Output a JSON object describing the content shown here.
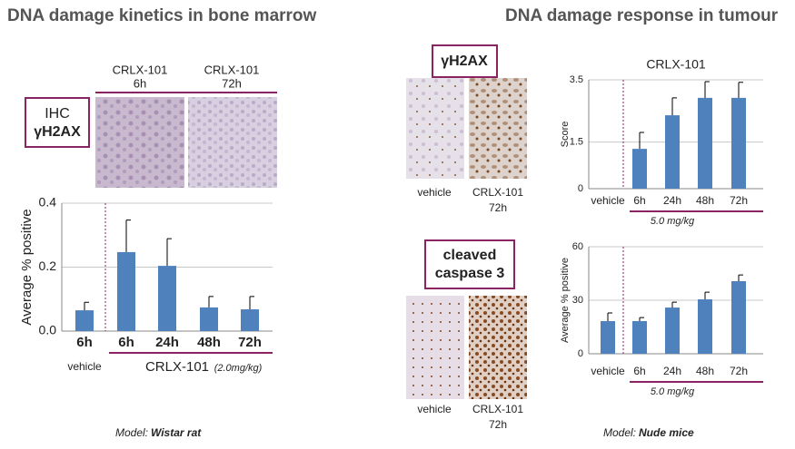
{
  "headings": [
    "DNA damage kinetics in bone marrow",
    "DNA damage response in tumour"
  ],
  "bone_marrow": {
    "captions": [
      [
        "CRLX-101",
        "6h"
      ],
      [
        "CRLX-101",
        "72h"
      ]
    ],
    "stain": [
      "IHC",
      "γH2AX"
    ],
    "model": [
      "Model:",
      "Wistar rat"
    ]
  },
  "tumour": {
    "stain_1": "γH2AX",
    "captions_1": [
      [
        "vehicle"
      ],
      [
        "CRLX-101",
        "72h"
      ]
    ],
    "stain_2": [
      "cleaved",
      "caspase 3"
    ],
    "captions_2": [
      [
        "vehicle"
      ],
      [
        "CRLX-101",
        "72h"
      ]
    ],
    "model": [
      "Model:",
      "Nude mice"
    ]
  },
  "chart_data": [
    {
      "type": "bar",
      "ylabel": "Average % positive",
      "categories": [
        "6h",
        "6h",
        "24h",
        "48h",
        "72h"
      ],
      "values": [
        0.065,
        0.247,
        0.204,
        0.074,
        0.068
      ],
      "errors": [
        0.025,
        0.1,
        0.085,
        0.034,
        0.04
      ],
      "group_labels": [
        "vehicle",
        "CRLX-101"
      ],
      "note": "(2.0mg/kg)",
      "color": "#4f81bd",
      "ylim": [
        0,
        0.4
      ],
      "yticks": [
        {
          "value": 0,
          "label": "0.0"
        },
        0.2,
        0.4
      ],
      "grid": true
    },
    {
      "type": "bar",
      "title": "CRLX-101",
      "ylabel": "Score",
      "categories": [
        "vehicle",
        "6h",
        "24h",
        "48h",
        "72h"
      ],
      "values": [
        0,
        1.28,
        2.36,
        2.92,
        2.92
      ],
      "errors": [
        0,
        0.53,
        0.56,
        0.52,
        0.5
      ],
      "note": "5.0 mg/kg",
      "color": "#4f81bd",
      "ylim": [
        0,
        3.5
      ],
      "yticks": [
        0,
        1.5,
        3.5
      ],
      "grid": true
    },
    {
      "type": "bar",
      "ylabel": "Average % positive",
      "categories": [
        "vehicle",
        "6h",
        "24h",
        "48h",
        "72h"
      ],
      "values": [
        18.3,
        18.3,
        25.9,
        30.5,
        40.7
      ],
      "errors": [
        4.6,
        2,
        3,
        4,
        3.5
      ],
      "note": "5.0 mg/kg",
      "color": "#4f81bd",
      "ylim": [
        0,
        60
      ],
      "yticks": [
        0,
        30,
        60
      ],
      "grid": true
    }
  ]
}
